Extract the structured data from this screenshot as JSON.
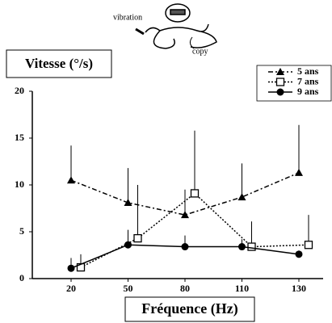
{
  "illustration": {
    "labels": [
      "vibration",
      "copy"
    ]
  },
  "chart_data": {
    "type": "line",
    "y_label": "Vitesse (°/s)",
    "x_label": "Fréquence (Hz)",
    "categories": [
      "20",
      "50",
      "80",
      "110",
      "130"
    ],
    "ylim": [
      0,
      20
    ],
    "yticks": [
      0,
      5,
      10,
      15,
      20
    ],
    "legend": "top-right",
    "series": [
      {
        "name": "5 ans",
        "color": "#000000",
        "marker": "triangle",
        "dash": "dashdot",
        "values": [
          10.5,
          8.1,
          6.8,
          8.7,
          11.3
        ],
        "errors": [
          3.7,
          3.7,
          2.7,
          3.6,
          5.1
        ]
      },
      {
        "name": "7 ans",
        "color": "#000000",
        "marker": "open-square",
        "dash": "dotted",
        "values": [
          1.2,
          4.3,
          9.1,
          3.4,
          3.6
        ],
        "errors": [
          1.4,
          5.7,
          6.7,
          2.7,
          3.2
        ]
      },
      {
        "name": "9 ans",
        "color": "#000000",
        "marker": "circle",
        "dash": "solid",
        "values": [
          1.1,
          3.6,
          3.4,
          3.4,
          2.6
        ],
        "errors": [
          1.1,
          1.6,
          1.2,
          0.8,
          0.4
        ]
      }
    ]
  }
}
